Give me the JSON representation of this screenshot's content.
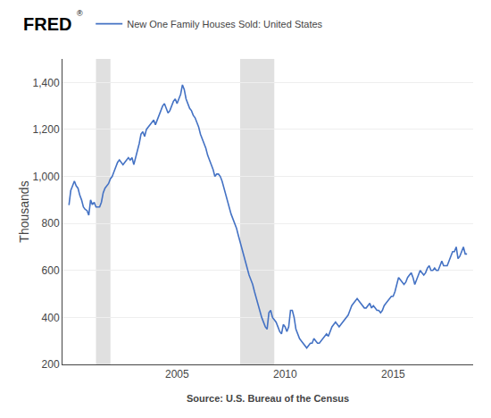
{
  "chart_data": {
    "type": "line",
    "ylabel": "Thousands",
    "annotations": [
      "FRED",
      "®",
      "Source: U.S. Bureau of the Census"
    ],
    "x": [
      2000.0,
      2000.083,
      2000.167,
      2000.25,
      2000.333,
      2000.417,
      2000.5,
      2000.583,
      2000.667,
      2000.75,
      2000.833,
      2000.917,
      2001.0,
      2001.083,
      2001.167,
      2001.25,
      2001.333,
      2001.417,
      2001.5,
      2001.583,
      2001.667,
      2001.75,
      2001.833,
      2001.917,
      2002.0,
      2002.083,
      2002.167,
      2002.25,
      2002.333,
      2002.417,
      2002.5,
      2002.583,
      2002.667,
      2002.75,
      2002.833,
      2002.917,
      2003.0,
      2003.083,
      2003.167,
      2003.25,
      2003.333,
      2003.417,
      2003.5,
      2003.583,
      2003.667,
      2003.75,
      2003.833,
      2003.917,
      2004.0,
      2004.083,
      2004.167,
      2004.25,
      2004.333,
      2004.417,
      2004.5,
      2004.583,
      2004.667,
      2004.75,
      2004.833,
      2004.917,
      2005.0,
      2005.083,
      2005.167,
      2005.25,
      2005.333,
      2005.417,
      2005.5,
      2005.583,
      2005.667,
      2005.75,
      2005.833,
      2005.917,
      2006.0,
      2006.083,
      2006.167,
      2006.25,
      2006.333,
      2006.417,
      2006.5,
      2006.583,
      2006.667,
      2006.75,
      2006.833,
      2006.917,
      2007.0,
      2007.083,
      2007.167,
      2007.25,
      2007.333,
      2007.417,
      2007.5,
      2007.583,
      2007.667,
      2007.75,
      2007.833,
      2007.917,
      2008.0,
      2008.083,
      2008.167,
      2008.25,
      2008.333,
      2008.417,
      2008.5,
      2008.583,
      2008.667,
      2008.75,
      2008.833,
      2008.917,
      2009.0,
      2009.083,
      2009.167,
      2009.25,
      2009.333,
      2009.417,
      2009.5,
      2009.583,
      2009.667,
      2009.75,
      2009.833,
      2009.917,
      2010.0,
      2010.083,
      2010.167,
      2010.25,
      2010.333,
      2010.417,
      2010.5,
      2010.583,
      2010.667,
      2010.75,
      2010.833,
      2010.917,
      2011.0,
      2011.083,
      2011.167,
      2011.25,
      2011.333,
      2011.417,
      2011.5,
      2011.583,
      2011.667,
      2011.75,
      2011.833,
      2011.917,
      2012.0,
      2012.083,
      2012.167,
      2012.25,
      2012.333,
      2012.417,
      2012.5,
      2012.583,
      2012.667,
      2012.75,
      2012.833,
      2012.917,
      2013.0,
      2013.083,
      2013.167,
      2013.25,
      2013.333,
      2013.417,
      2013.5,
      2013.583,
      2013.667,
      2013.75,
      2013.833,
      2013.917,
      2014.0,
      2014.083,
      2014.167,
      2014.25,
      2014.333,
      2014.417,
      2014.5,
      2014.583,
      2014.667,
      2014.75,
      2014.833,
      2014.917,
      2015.0,
      2015.083,
      2015.167,
      2015.25,
      2015.333,
      2015.417,
      2015.5,
      2015.583,
      2015.667,
      2015.75,
      2015.833,
      2015.917,
      2016.0,
      2016.083,
      2016.167,
      2016.25,
      2016.333,
      2016.417,
      2016.5,
      2016.583,
      2016.667,
      2016.75,
      2016.833,
      2016.917,
      2017.0,
      2017.083,
      2017.167,
      2017.25,
      2017.333,
      2017.417,
      2017.5,
      2017.583,
      2017.667,
      2017.75,
      2017.833,
      2017.917,
      2018.0,
      2018.083,
      2018.167,
      2018.25,
      2018.333,
      2018.417
    ],
    "series": [
      {
        "name": "New One Family Houses Sold: United States",
        "color": "#4472c4",
        "values": [
          878,
          940,
          960,
          980,
          960,
          950,
          920,
          900,
          870,
          860,
          855,
          835,
          900,
          880,
          890,
          870,
          870,
          870,
          890,
          930,
          950,
          960,
          970,
          990,
          1000,
          1020,
          1040,
          1060,
          1070,
          1060,
          1050,
          1060,
          1070,
          1080,
          1070,
          1080,
          1050,
          1080,
          1100,
          1140,
          1180,
          1190,
          1170,
          1200,
          1210,
          1220,
          1230,
          1240,
          1220,
          1240,
          1260,
          1280,
          1300,
          1310,
          1290,
          1270,
          1280,
          1300,
          1320,
          1330,
          1310,
          1330,
          1350,
          1390,
          1370,
          1330,
          1310,
          1290,
          1280,
          1260,
          1250,
          1230,
          1210,
          1180,
          1160,
          1140,
          1120,
          1090,
          1070,
          1050,
          1030,
          1000,
          1010,
          1010,
          1000,
          980,
          950,
          920,
          900,
          870,
          840,
          820,
          800,
          780,
          750,
          720,
          690,
          660,
          640,
          610,
          580,
          560,
          540,
          510,
          480,
          460,
          430,
          400,
          380,
          360,
          350,
          420,
          430,
          400,
          390,
          380,
          360,
          340,
          330,
          370,
          360,
          340,
          360,
          430,
          430,
          400,
          350,
          330,
          310,
          300,
          290,
          280,
          270,
          280,
          290,
          290,
          310,
          300,
          290,
          290,
          300,
          310,
          320,
          330,
          320,
          340,
          360,
          370,
          380,
          370,
          360,
          370,
          380,
          390,
          400,
          410,
          430,
          450,
          460,
          470,
          480,
          470,
          460,
          450,
          440,
          440,
          450,
          460,
          440,
          450,
          440,
          430,
          430,
          420,
          430,
          450,
          460,
          470,
          480,
          490,
          490,
          510,
          540,
          570,
          560,
          550,
          540,
          550,
          570,
          580,
          590,
          570,
          540,
          560,
          580,
          600,
          590,
          580,
          590,
          610,
          620,
          600,
          600,
          610,
          600,
          600,
          620,
          640,
          620,
          620,
          620,
          640,
          660,
          680,
          680,
          700,
          650,
          660,
          680,
          700,
          670,
          670
        ]
      }
    ],
    "recessions": {
      "color": "#e0e0e0",
      "ranges": [
        [
          2001.25,
          2001.92
        ],
        [
          2007.92,
          2009.5
        ]
      ]
    },
    "xlim": [
      1999.7,
      2018.7
    ],
    "xticks": [
      2005,
      2010,
      2015
    ],
    "ylim": [
      200,
      1500
    ],
    "yticks": [
      200,
      400,
      600,
      800,
      {
        "value": 1000,
        "label": "1,000"
      },
      {
        "value": 1200,
        "label": "1,200"
      },
      {
        "value": 1400,
        "label": "1,400"
      }
    ],
    "grid": "y",
    "legend": "top left"
  }
}
